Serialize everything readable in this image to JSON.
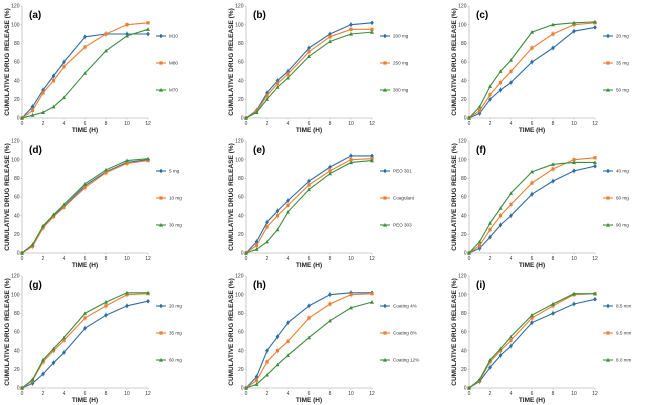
{
  "figure": {
    "background": "#ffffff",
    "colors": [
      "#2e6da4",
      "#ed7d31",
      "#3c8d3c"
    ],
    "markers": [
      "diamond",
      "square",
      "triangle"
    ]
  },
  "chart_data": [
    {
      "type": "line",
      "panel": "(a)",
      "xlabel": "TIME (H)",
      "ylabel": "CUMULATIVE DRUG RELEASE (%)",
      "xlim": [
        0,
        12
      ],
      "ylim": [
        0,
        120
      ],
      "xticks": [
        "0",
        "2",
        "4",
        "6",
        "8",
        "10",
        "12"
      ],
      "yticks": [
        "0",
        "20",
        "40",
        "60",
        "80",
        "100",
        "120"
      ],
      "x": [
        0,
        1,
        2,
        3,
        4,
        6,
        8,
        10,
        12
      ],
      "series": [
        {
          "name": "M10",
          "values": [
            0,
            12,
            30,
            45,
            60,
            87,
            90,
            90,
            90
          ]
        },
        {
          "name": "M80",
          "values": [
            0,
            8,
            27,
            40,
            55,
            76,
            90,
            100,
            102
          ]
        },
        {
          "name": "M70",
          "values": [
            0,
            3,
            6,
            12,
            22,
            48,
            72,
            88,
            95
          ]
        }
      ]
    },
    {
      "type": "line",
      "panel": "(b)",
      "xlabel": "TIME (H)",
      "ylabel": "CUMULATIVE DRUG RELEASE (%)",
      "xlim": [
        0,
        12
      ],
      "ylim": [
        0,
        120
      ],
      "xticks": [
        "0",
        "2",
        "4",
        "6",
        "8",
        "10",
        "12"
      ],
      "yticks": [
        "0",
        "20",
        "40",
        "60",
        "80",
        "100",
        "120"
      ],
      "x": [
        0,
        1,
        2,
        3,
        4,
        6,
        8,
        10,
        12
      ],
      "series": [
        {
          "name": "200 mg",
          "values": [
            0,
            8,
            27,
            40,
            50,
            75,
            90,
            100,
            102
          ]
        },
        {
          "name": "250 mg",
          "values": [
            0,
            7,
            24,
            37,
            47,
            71,
            87,
            95,
            95
          ]
        },
        {
          "name": "300 mg",
          "values": [
            0,
            6,
            20,
            33,
            43,
            66,
            82,
            90,
            92
          ]
        }
      ]
    },
    {
      "type": "line",
      "panel": "(c)",
      "xlabel": "TIME (H)",
      "ylabel": "CUMULATIVE DRUG RELEASE (%)",
      "xlim": [
        0,
        12
      ],
      "ylim": [
        0,
        120
      ],
      "xticks": [
        "0",
        "2",
        "4",
        "6",
        "8",
        "10",
        "12"
      ],
      "yticks": [
        "0",
        "20",
        "40",
        "60",
        "80",
        "100",
        "120"
      ],
      "x": [
        0,
        1,
        2,
        3,
        4,
        6,
        8,
        10,
        12
      ],
      "series": [
        {
          "name": "20 mg",
          "values": [
            0,
            5,
            20,
            30,
            38,
            60,
            75,
            93,
            97
          ]
        },
        {
          "name": "35 mg",
          "values": [
            0,
            8,
            25,
            38,
            50,
            75,
            90,
            100,
            102
          ]
        },
        {
          "name": "50 mg",
          "values": [
            0,
            12,
            34,
            50,
            62,
            92,
            100,
            102,
            103
          ]
        }
      ]
    },
    {
      "type": "line",
      "panel": "(d)",
      "xlabel": "TIME (H)",
      "ylabel": "CUMULATIVE DRUG RELEASE (%)",
      "xlim": [
        0,
        12
      ],
      "ylim": [
        0,
        120
      ],
      "xticks": [
        "0",
        "2",
        "4",
        "6",
        "8",
        "10",
        "12"
      ],
      "yticks": [
        "0",
        "20",
        "40",
        "60",
        "80",
        "100",
        "120"
      ],
      "x": [
        0,
        1,
        2,
        3,
        4,
        6,
        8,
        10,
        12
      ],
      "series": [
        {
          "name": "5 mg",
          "values": [
            0,
            8,
            28,
            40,
            50,
            72,
            87,
            97,
            100
          ]
        },
        {
          "name": "10 mg",
          "values": [
            0,
            7,
            27,
            39,
            49,
            70,
            86,
            96,
            99
          ]
        },
        {
          "name": "30 mg",
          "values": [
            0,
            9,
            29,
            41,
            52,
            74,
            89,
            99,
            101
          ]
        }
      ]
    },
    {
      "type": "line",
      "panel": "(e)",
      "xlabel": "TIME (H)",
      "ylabel": "CUMULATIVE DRUG RELEASE (%)",
      "xlim": [
        0,
        12
      ],
      "ylim": [
        0,
        120
      ],
      "xticks": [
        "0",
        "2",
        "4",
        "6",
        "8",
        "10",
        "12"
      ],
      "yticks": [
        "0",
        "20",
        "40",
        "60",
        "80",
        "100",
        "120"
      ],
      "x": [
        0,
        1,
        2,
        3,
        4,
        6,
        8,
        10,
        12
      ],
      "series": [
        {
          "name": "PEO 301",
          "values": [
            0,
            12,
            33,
            45,
            56,
            77,
            92,
            104,
            104
          ]
        },
        {
          "name": "Coagulant",
          "values": [
            0,
            8,
            28,
            40,
            51,
            73,
            88,
            100,
            101
          ]
        },
        {
          "name": "PEO 303",
          "values": [
            0,
            4,
            12,
            25,
            44,
            68,
            85,
            97,
            99
          ]
        }
      ]
    },
    {
      "type": "line",
      "panel": "(f)",
      "xlabel": "TIME (H)",
      "ylabel": "CUMULATIVE DRUG RELEASE (%)",
      "xlim": [
        0,
        12
      ],
      "ylim": [
        0,
        120
      ],
      "xticks": [
        "0",
        "2",
        "4",
        "6",
        "8",
        "10",
        "12"
      ],
      "yticks": [
        "0",
        "20",
        "40",
        "60",
        "80",
        "100",
        "120"
      ],
      "x": [
        0,
        1,
        2,
        3,
        4,
        6,
        8,
        10,
        12
      ],
      "series": [
        {
          "name": "40 mg",
          "values": [
            0,
            5,
            17,
            30,
            40,
            63,
            77,
            88,
            93
          ]
        },
        {
          "name": "60 mg",
          "values": [
            0,
            8,
            25,
            40,
            52,
            75,
            90,
            100,
            102
          ]
        },
        {
          "name": "90 mg",
          "values": [
            0,
            12,
            32,
            48,
            64,
            87,
            95,
            97,
            97
          ]
        }
      ]
    },
    {
      "type": "line",
      "panel": "(g)",
      "xlabel": "TIME (H)",
      "ylabel": "CUMULATIVE DRUG RELEASE (%)",
      "xlim": [
        0,
        12
      ],
      "ylim": [
        0,
        120
      ],
      "xticks": [
        "0",
        "2",
        "4",
        "6",
        "8",
        "10",
        "12"
      ],
      "yticks": [
        "0",
        "20",
        "40",
        "60",
        "80",
        "100",
        "120"
      ],
      "x": [
        0,
        1,
        2,
        3,
        4,
        6,
        8,
        10,
        12
      ],
      "series": [
        {
          "name": "20 mg",
          "values": [
            0,
            5,
            15,
            27,
            38,
            64,
            78,
            88,
            93
          ]
        },
        {
          "name": "35 mg",
          "values": [
            0,
            8,
            28,
            40,
            51,
            75,
            88,
            100,
            101
          ]
        },
        {
          "name": "60 mg",
          "values": [
            0,
            9,
            30,
            42,
            54,
            80,
            92,
            102,
            102
          ]
        }
      ]
    },
    {
      "type": "line",
      "panel": "(h)",
      "xlabel": "TIME (H)",
      "ylabel": "CUMULATIVE DRUG RELEASE (%)",
      "xlim": [
        0,
        12
      ],
      "ylim": [
        0,
        120
      ],
      "xticks": [
        "0",
        "2",
        "4",
        "6",
        "8",
        "10",
        "12"
      ],
      "yticks": [
        "0",
        "20",
        "40",
        "60",
        "80",
        "100",
        "120"
      ],
      "x": [
        0,
        1,
        2,
        3,
        4,
        6,
        8,
        10,
        12
      ],
      "series": [
        {
          "name": "Coating 4%",
          "values": [
            0,
            12,
            40,
            55,
            70,
            88,
            100,
            102,
            102
          ]
        },
        {
          "name": "Coating 8%",
          "values": [
            0,
            8,
            28,
            40,
            50,
            75,
            90,
            100,
            101
          ]
        },
        {
          "name": "Coating 12%",
          "values": [
            0,
            4,
            14,
            25,
            35,
            54,
            72,
            86,
            92
          ]
        }
      ]
    },
    {
      "type": "line",
      "panel": "(i)",
      "xlabel": "TIME (H)",
      "ylabel": "CUMULATIVE DRUG RELEASE (%)",
      "xlim": [
        0,
        12
      ],
      "ylim": [
        0,
        120
      ],
      "xticks": [
        "0",
        "2",
        "4",
        "6",
        "8",
        "10",
        "12"
      ],
      "yticks": [
        "0",
        "20",
        "40",
        "60",
        "80",
        "100",
        "120"
      ],
      "x": [
        0,
        1,
        2,
        3,
        4,
        6,
        8,
        10,
        12
      ],
      "series": [
        {
          "name": "8.5 mm",
          "values": [
            0,
            7,
            22,
            35,
            45,
            70,
            80,
            90,
            95
          ]
        },
        {
          "name": "9.5 mm",
          "values": [
            0,
            8,
            28,
            40,
            51,
            75,
            88,
            100,
            101
          ]
        },
        {
          "name": "8.0 mm",
          "values": [
            0,
            9,
            30,
            42,
            55,
            78,
            90,
            101,
            101
          ]
        }
      ]
    }
  ]
}
